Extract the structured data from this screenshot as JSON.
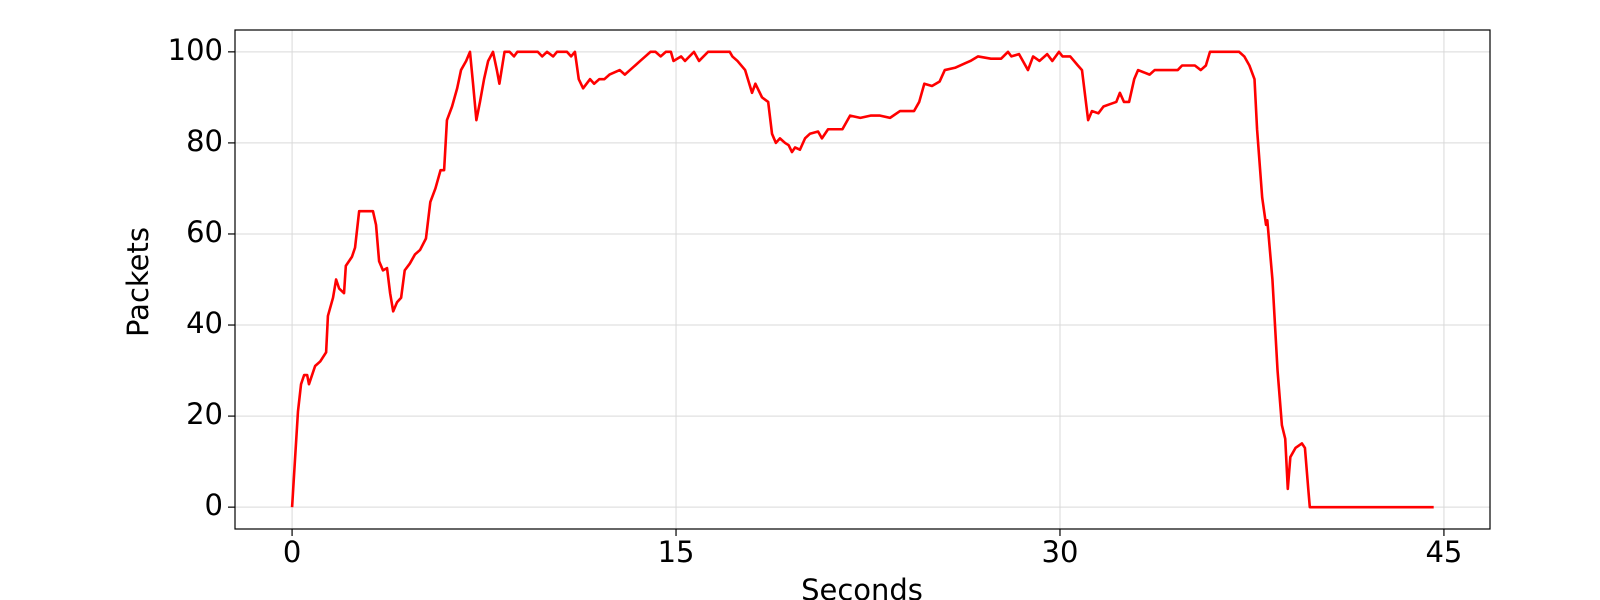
{
  "chart_data": {
    "type": "line",
    "xlabel": "Seconds",
    "ylabel": "Packets",
    "color": "#ff0000",
    "grid": true,
    "xlim": [
      -2.23,
      46.8
    ],
    "ylim": [
      -4.8,
      104.8
    ],
    "xticks": [
      0,
      15,
      30,
      45
    ],
    "yticks": [
      0,
      20,
      40,
      60,
      80,
      100
    ],
    "x": [
      0,
      0.12,
      0.23,
      0.35,
      0.47,
      0.59,
      0.66,
      0.9,
      1.1,
      1.33,
      1.4,
      1.6,
      1.72,
      1.84,
      2.03,
      2.1,
      2.34,
      2.46,
      2.62,
      2.8,
      2.97,
      3.16,
      3.28,
      3.4,
      3.55,
      3.71,
      3.83,
      3.95,
      4.1,
      4.26,
      4.4,
      4.6,
      4.8,
      5.0,
      5.23,
      5.4,
      5.6,
      5.8,
      5.94,
      6.05,
      6.25,
      6.45,
      6.6,
      6.8,
      6.95,
      7.07,
      7.2,
      7.34,
      7.5,
      7.66,
      7.85,
      8.0,
      8.1,
      8.3,
      8.5,
      8.67,
      8.8,
      9.3,
      9.6,
      9.77,
      9.96,
      10.2,
      10.35,
      10.74,
      10.9,
      11.05,
      11.2,
      11.37,
      11.64,
      11.8,
      12.0,
      12.2,
      12.4,
      12.8,
      13.0,
      13.2,
      13.6,
      13.8,
      14.0,
      14.2,
      14.4,
      14.6,
      14.8,
      14.9,
      15.2,
      15.35,
      15.7,
      15.9,
      16.25,
      17.1,
      17.2,
      17.4,
      17.7,
      17.97,
      18.1,
      18.36,
      18.6,
      18.75,
      18.9,
      19.06,
      19.26,
      19.4,
      19.53,
      19.65,
      19.84,
      20.04,
      20.23,
      20.55,
      20.7,
      20.94,
      21.2,
      21.5,
      21.8,
      22.2,
      22.6,
      22.97,
      23.36,
      23.75,
      24.3,
      24.5,
      24.7,
      25.0,
      25.3,
      25.5,
      25.9,
      26.3,
      26.5,
      26.8,
      27.3,
      27.7,
      27.97,
      28.1,
      28.4,
      28.75,
      28.95,
      29.2,
      29.5,
      29.7,
      29.96,
      30.1,
      30.4,
      30.7,
      30.86,
      31.1,
      31.25,
      31.5,
      31.7,
      31.95,
      32.2,
      32.34,
      32.5,
      32.7,
      32.9,
      33.05,
      33.5,
      33.7,
      34.0,
      34.6,
      34.77,
      35.27,
      35.5,
      35.7,
      35.86,
      36.25,
      37.0,
      37.2,
      37.4,
      37.6,
      37.7,
      37.9,
      38.05,
      38.1,
      38.3,
      38.5,
      38.67,
      38.8,
      38.9,
      39.0,
      39.2,
      39.45,
      39.57,
      39.7,
      39.76,
      44.6
    ],
    "values": [
      0,
      11,
      21,
      27,
      29,
      29,
      27,
      31,
      32,
      34,
      42,
      46,
      50,
      48,
      47,
      53,
      55,
      57,
      65,
      65,
      65,
      65,
      62,
      54,
      52,
      52.5,
      47,
      43,
      45,
      46,
      52,
      53.5,
      55.5,
      56.5,
      59,
      67,
      70,
      74,
      74,
      85,
      88,
      92,
      96,
      98,
      100,
      93,
      85,
      89,
      94,
      98,
      100,
      96,
      93,
      100,
      100,
      99,
      100,
      100,
      100,
      99,
      100,
      99,
      100,
      100,
      99,
      100,
      94,
      92,
      94,
      93,
      94,
      94,
      95,
      96,
      95,
      96,
      98,
      99,
      100,
      100,
      99,
      100,
      100,
      98,
      99,
      98,
      100,
      98,
      100,
      100,
      99,
      98,
      96,
      91,
      93,
      90,
      89,
      82,
      80,
      81,
      80,
      79.5,
      78,
      79,
      78.5,
      81,
      82,
      82.5,
      81,
      83,
      83,
      83,
      86,
      85.5,
      86,
      86,
      85.5,
      87,
      87,
      89,
      93,
      92.5,
      93.5,
      96,
      96.5,
      97.5,
      98,
      99,
      98.5,
      98.5,
      100,
      99,
      99.5,
      96,
      99,
      98,
      99.5,
      98,
      100,
      99,
      99,
      97,
      96,
      85,
      87,
      86.5,
      88,
      88.5,
      89,
      91,
      89,
      89,
      94,
      96,
      95,
      96,
      96,
      96,
      97,
      97,
      96,
      97,
      100,
      100,
      100,
      99,
      97,
      94,
      83,
      68,
      62,
      63,
      50,
      30,
      18,
      15,
      4,
      11,
      13,
      14,
      13,
      4,
      0,
      0
    ]
  }
}
